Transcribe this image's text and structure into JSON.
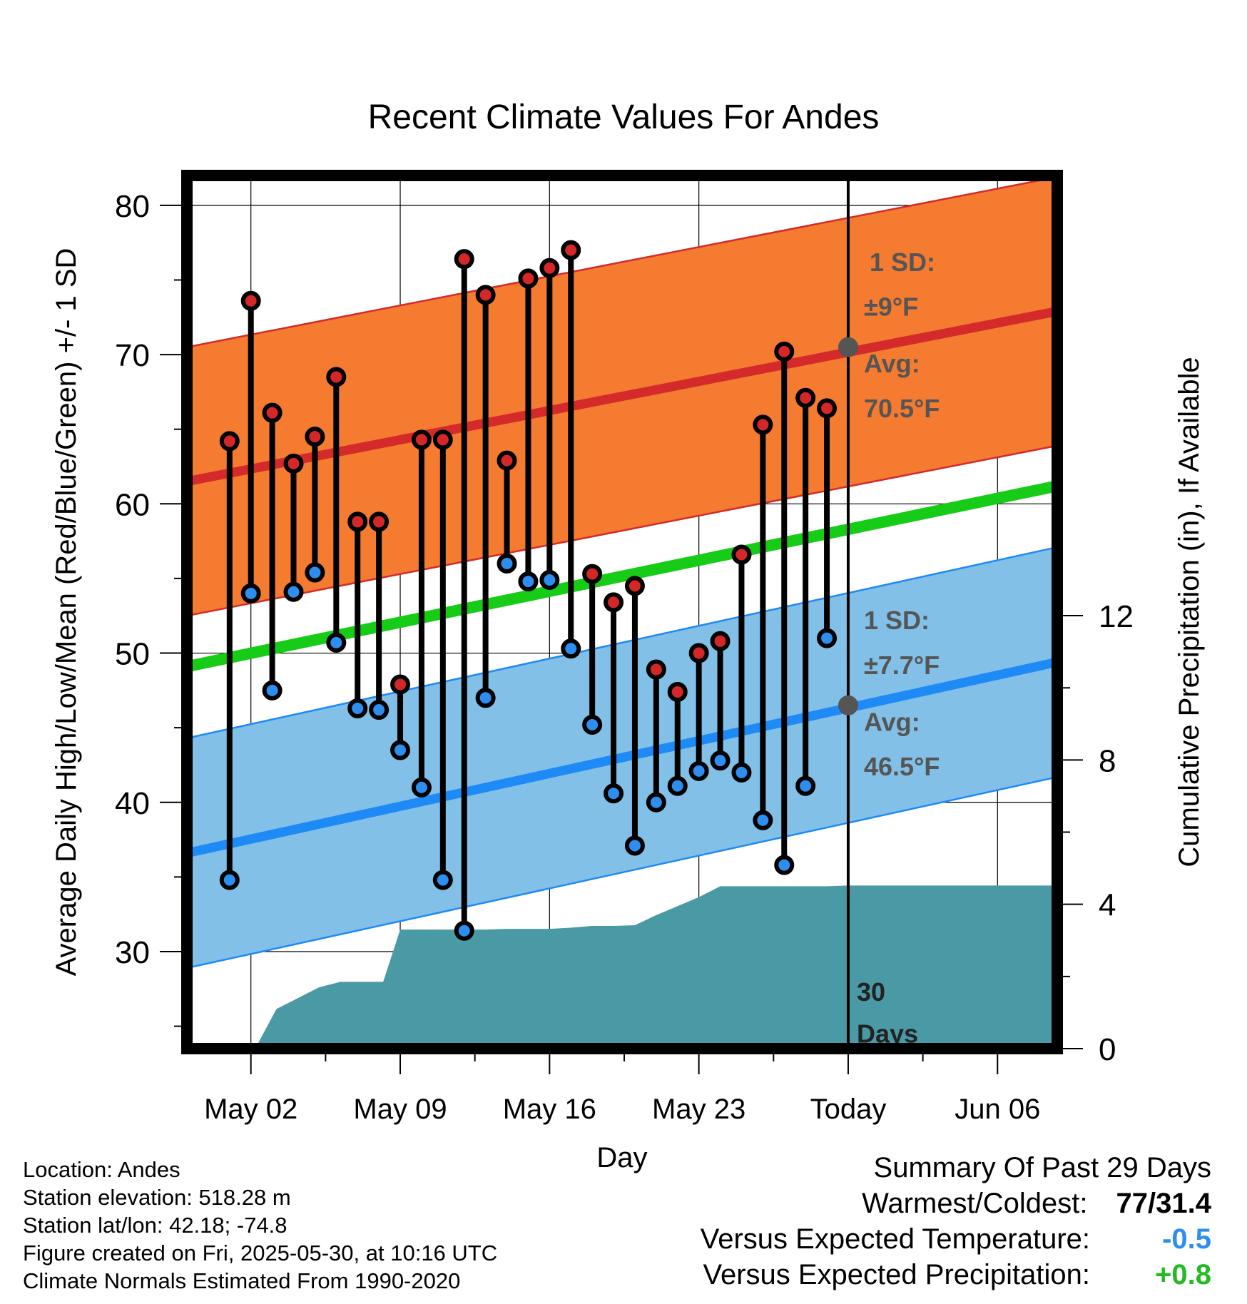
{
  "chart_data": {
    "type": "line",
    "title": "Recent Climate Values For Andes",
    "xlabel": "Day",
    "ylabel": "Average Daily High/Low/Mean (Red/Blue/Green) +/- 1 SD",
    "y2label": "Cumulative Precipitation (in), If Available",
    "ylim": [
      23.5,
      82
    ],
    "y_ticks": [
      "30",
      "40",
      "50",
      "60",
      "70",
      "80"
    ],
    "y2_ticks": [
      "0",
      "4",
      "8",
      "12"
    ],
    "y2lim": [
      0,
      24.2
    ],
    "x_tick_labels": [
      "May 02",
      "May 09",
      "May 16",
      "May 23",
      "Today",
      "Jun 06"
    ],
    "x_ticks_day": [
      2,
      9,
      16,
      23,
      30,
      37
    ],
    "xlim": [
      -1,
      39.8
    ],
    "today_day": 30,
    "today_label": [
      "30",
      "Days"
    ],
    "grid": true,
    "days": [
      1,
      2,
      3,
      4,
      5,
      6,
      7,
      8,
      9,
      10,
      11,
      12,
      13,
      14,
      15,
      16,
      17,
      18,
      19,
      20,
      21,
      22,
      23,
      24,
      25,
      26,
      27,
      28,
      29
    ],
    "series": [
      {
        "name": "High",
        "color": "#d62728",
        "values": [
          64.2,
          73.6,
          66.1,
          62.7,
          64.5,
          68.5,
          58.8,
          58.8,
          47.9,
          64.3,
          64.3,
          76.4,
          74.0,
          62.9,
          75.1,
          75.8,
          77.0,
          55.3,
          53.4,
          54.5,
          48.9,
          47.4,
          50.0,
          50.8,
          56.6,
          65.3,
          70.2,
          67.1,
          66.4
        ]
      },
      {
        "name": "Low",
        "color": "#2e8ef0",
        "values": [
          34.8,
          54.0,
          47.5,
          54.1,
          55.4,
          50.7,
          46.3,
          46.2,
          43.5,
          41.0,
          34.8,
          31.4,
          47.0,
          56.0,
          54.8,
          54.9,
          50.3,
          45.2,
          40.6,
          37.1,
          40.0,
          41.1,
          42.1,
          42.8,
          42.0,
          38.8,
          35.8,
          41.1,
          51.0
        ]
      }
    ],
    "normal_high": {
      "color": "#d42a2a",
      "start": 61.5,
      "end": 72.9,
      "sd": 9,
      "band_color": "#f47b30",
      "label_sd": "1 SD:",
      "label_pm": "±9°F",
      "label_avg": "Avg:",
      "label_avg_val": "70.5°F",
      "today_value": 70.5
    },
    "normal_low": {
      "color": "#1e8af5",
      "start": 36.6,
      "end": 49.4,
      "sd": 7.7,
      "band_color": "#82c0e8",
      "label_sd": "1 SD:",
      "label_pm": "±7.7°F",
      "label_avg": "Avg:",
      "label_avg_val": "46.5°F",
      "today_value": 46.5
    },
    "normal_mean": {
      "color": "#16cc16",
      "start": 49.1,
      "end": 61.2
    },
    "precip_cumulative": {
      "color": "#4a9aa5",
      "points": [
        [
          2.2,
          0
        ],
        [
          3.2,
          1.1
        ],
        [
          4.2,
          1.4
        ],
        [
          5.2,
          1.7
        ],
        [
          6.2,
          1.85
        ],
        [
          7.2,
          1.85
        ],
        [
          8.2,
          1.85
        ],
        [
          9.0,
          3.3
        ],
        [
          10,
          3.3
        ],
        [
          11,
          3.3
        ],
        [
          12,
          3.3
        ],
        [
          13,
          3.3
        ],
        [
          14,
          3.32
        ],
        [
          15,
          3.32
        ],
        [
          16,
          3.32
        ],
        [
          17,
          3.35
        ],
        [
          18,
          3.4
        ],
        [
          19,
          3.4
        ],
        [
          20,
          3.42
        ],
        [
          21,
          3.7
        ],
        [
          22,
          3.95
        ],
        [
          23,
          4.2
        ],
        [
          24,
          4.5
        ],
        [
          25,
          4.5
        ],
        [
          26,
          4.5
        ],
        [
          27,
          4.5
        ],
        [
          28,
          4.5
        ],
        [
          29,
          4.5
        ],
        [
          30,
          4.52
        ],
        [
          39.8,
          4.52
        ]
      ]
    }
  },
  "footer": {
    "location": "Location: Andes",
    "elevation": "Station elevation: 518.28 m",
    "latlon": "Station lat/lon: 42.18; -74.8",
    "created": "Figure created on Fri, 2025-05-30, at 10:16 UTC",
    "normals": "Climate Normals Estimated From 1990-2020"
  },
  "summary": {
    "heading": "Summary Of Past 29 Days",
    "warmest_label": "Warmest/Coldest:",
    "warmest_value": "77/31.4",
    "temp_label": "Versus Expected Temperature:",
    "temp_value": "-0.5",
    "temp_color": "#2e8ef0",
    "precip_label": "Versus Expected Precipitation:",
    "precip_value": "+0.8",
    "precip_color": "#22bb22"
  }
}
